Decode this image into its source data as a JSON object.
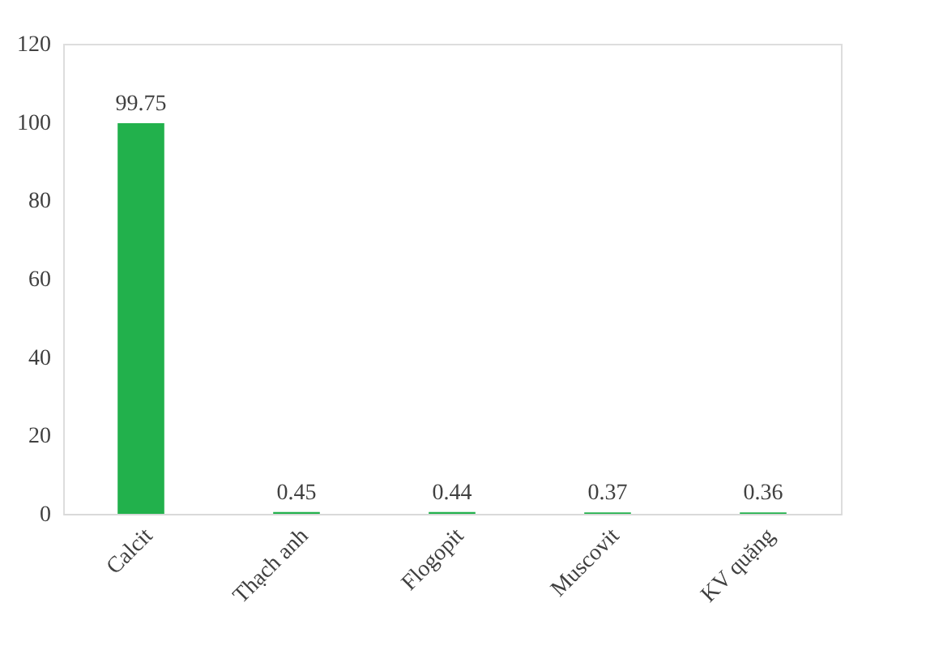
{
  "chart_data": {
    "type": "bar",
    "categories": [
      "Calcit",
      "Thạch anh",
      "Flogopit",
      "Muscovit",
      "KV quặng"
    ],
    "values": [
      99.75,
      0.45,
      0.44,
      0.37,
      0.36
    ],
    "color": "#22b14c",
    "ylim": [
      0,
      120
    ],
    "yticks": [
      0,
      20,
      40,
      60,
      80,
      100,
      120
    ],
    "grid": false,
    "data_labels": true
  }
}
